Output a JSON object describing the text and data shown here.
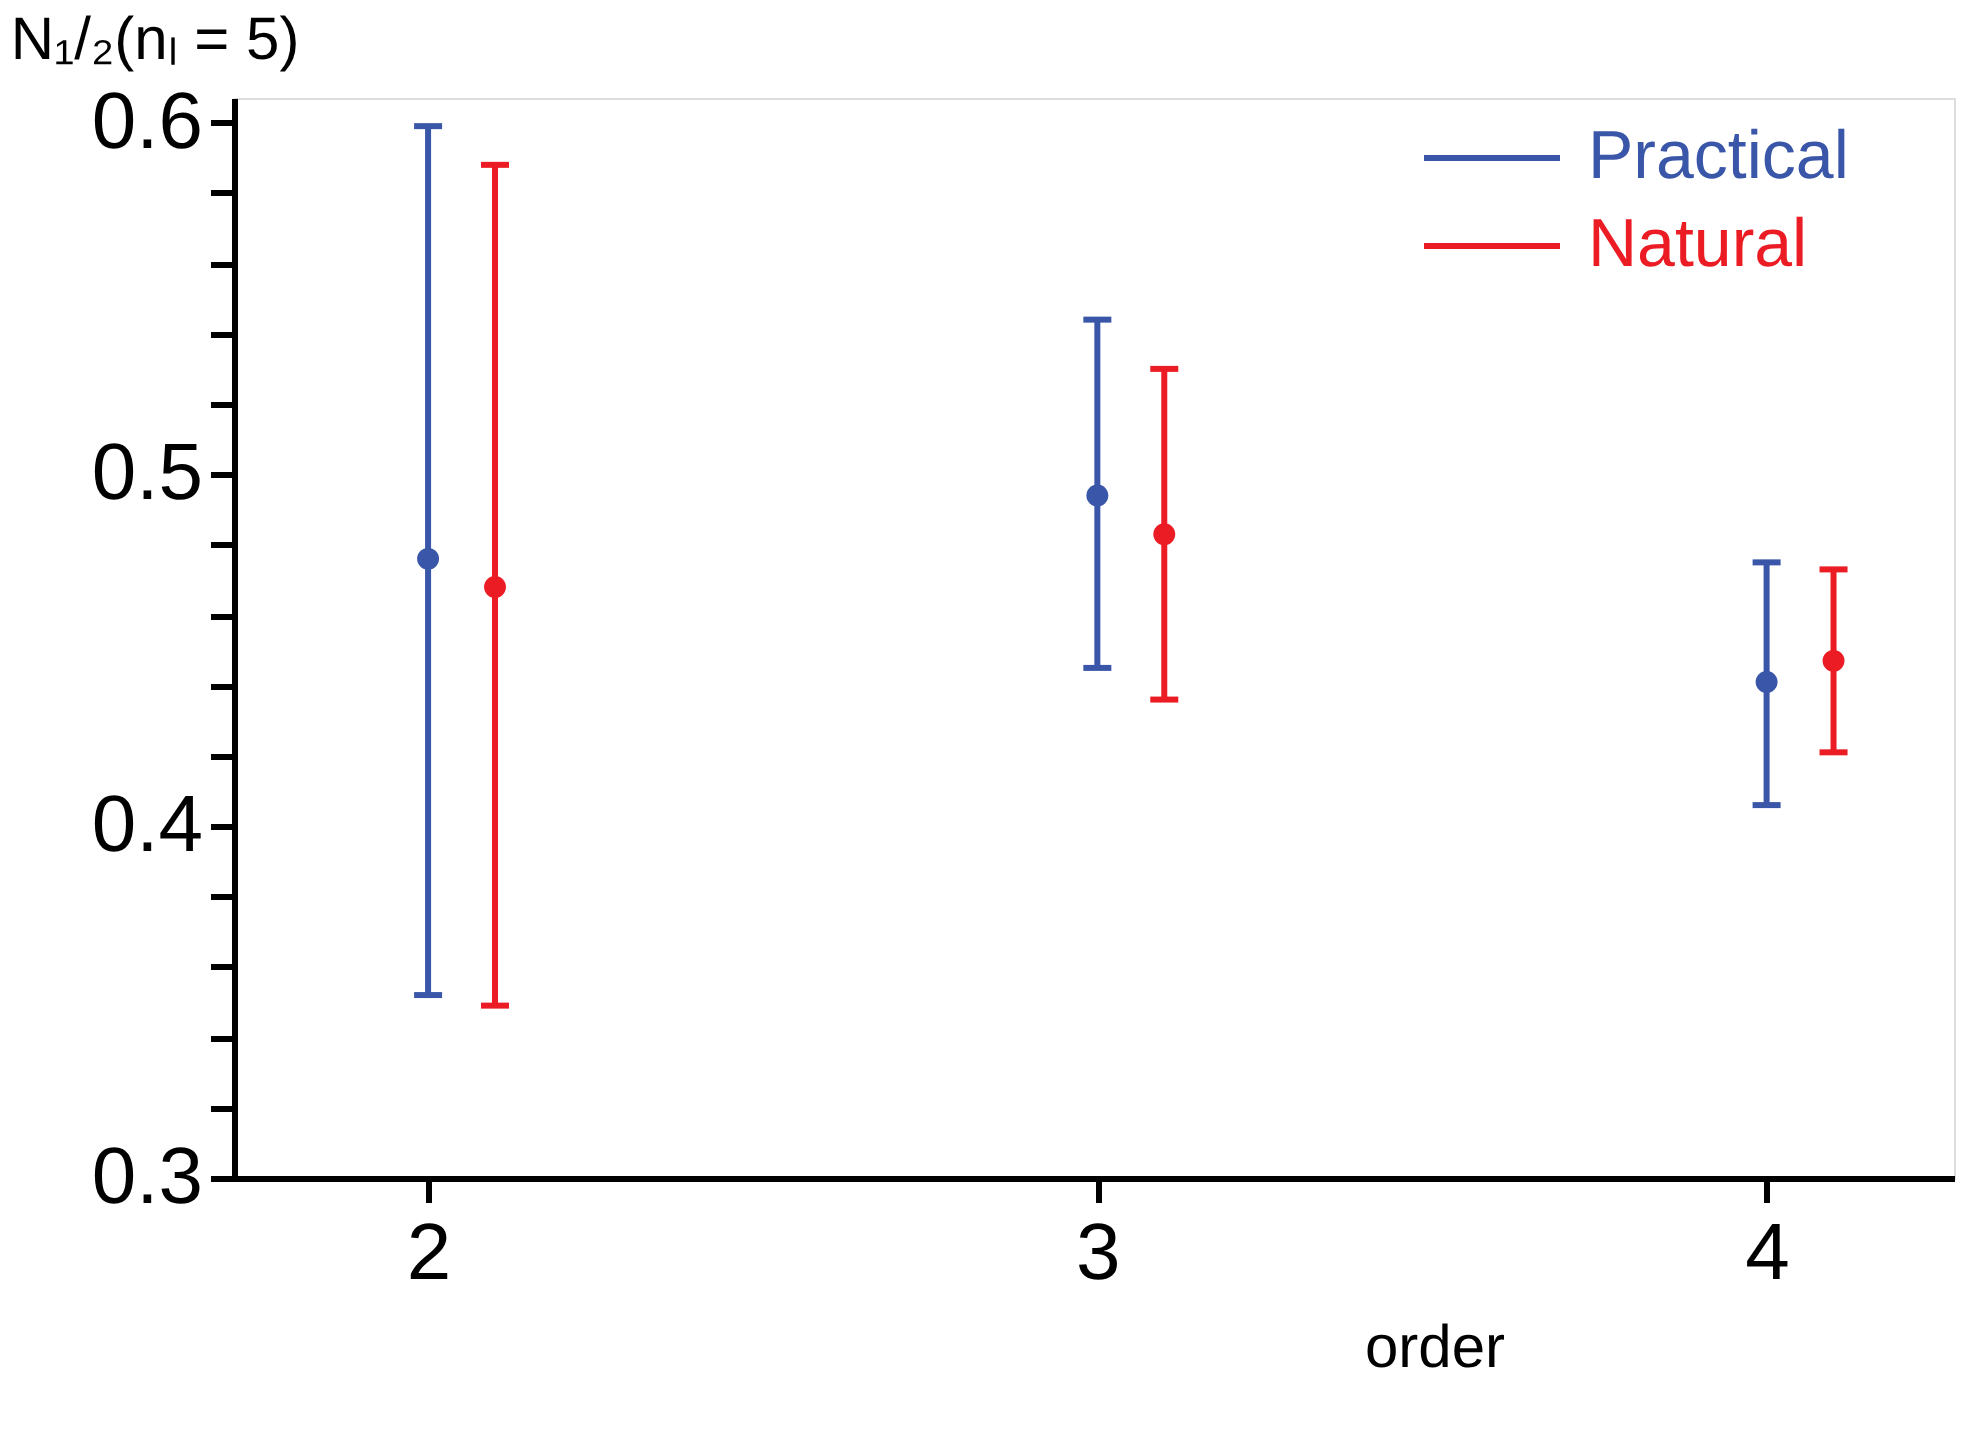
{
  "chart_data": {
    "type": "scatter",
    "ylabel": "N₁/₂(nₗ = 5)",
    "xlabel": "order",
    "xlim": [
      1.71,
      4.28
    ],
    "xticks": [
      2,
      3,
      4
    ],
    "ylim": [
      0.3,
      0.607
    ],
    "yticks": [
      0.3,
      {
        "value": 0.32,
        "label": null
      },
      {
        "value": 0.34,
        "label": null
      },
      {
        "value": 0.36,
        "label": null
      },
      {
        "value": 0.38,
        "label": null
      },
      0.4,
      {
        "value": 0.42,
        "label": null
      },
      {
        "value": 0.44,
        "label": null
      },
      {
        "value": 0.46,
        "label": null
      },
      {
        "value": 0.48,
        "label": null
      },
      0.5,
      {
        "value": 0.52,
        "label": null
      },
      {
        "value": 0.54,
        "label": null
      },
      {
        "value": 0.56,
        "label": null
      },
      {
        "value": 0.58,
        "label": null
      },
      0.6
    ],
    "marker": "circle",
    "legend": "top right",
    "grid": false,
    "series": [
      {
        "name": "Practical",
        "color": "#3a56a8",
        "x": [
          2,
          3,
          4
        ],
        "values": [
          0.476,
          0.494,
          0.441
        ],
        "errors": [
          [
            0.352,
            0.599
          ],
          [
            0.445,
            0.544
          ],
          [
            0.406,
            0.475
          ]
        ]
      },
      {
        "name": "Natural",
        "color": "#ec1c24",
        "x": [
          2.1,
          3.1,
          4.1
        ],
        "values": [
          0.468,
          0.483,
          0.447
        ],
        "errors": [
          [
            0.349,
            0.588
          ],
          [
            0.436,
            0.53
          ],
          [
            0.421,
            0.473
          ]
        ]
      }
    ]
  }
}
